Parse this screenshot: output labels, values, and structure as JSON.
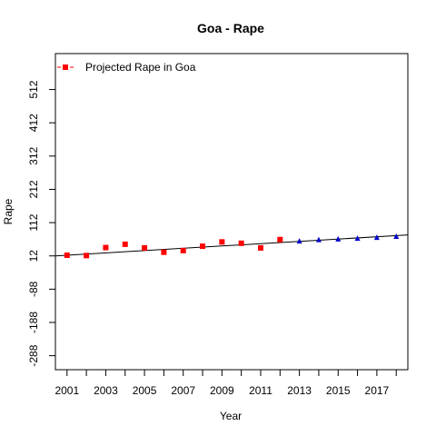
{
  "chart_data": {
    "type": "scatter",
    "title": "Goa  -  Rape",
    "xlabel": "Year",
    "ylabel": "Rape",
    "xlim": [
      2000.4,
      2018.6
    ],
    "ylim": [
      -330,
      620
    ],
    "x_ticks": [
      2001,
      2002,
      2003,
      2004,
      2005,
      2006,
      2007,
      2008,
      2009,
      2010,
      2011,
      2012,
      2013,
      2014,
      2015,
      2016,
      2017,
      2018
    ],
    "x_tick_labels": [
      "2001",
      "",
      "2003",
      "",
      "2005",
      "",
      "2007",
      "",
      "2009",
      "",
      "2011",
      "",
      "2013",
      "",
      "2015",
      "",
      "2017",
      ""
    ],
    "y_ticks": [
      -288,
      -188,
      -88,
      12,
      112,
      212,
      312,
      412,
      512
    ],
    "y_tick_labels": [
      "-288",
      "-188",
      "-88",
      "12",
      "112",
      "212",
      "312",
      "412",
      "512"
    ],
    "grid": false,
    "legend_position": "top-left",
    "legend": [
      {
        "label": "Projected Rape  in  Goa",
        "color": "#ff0000",
        "marker": "square"
      }
    ],
    "series": [
      {
        "color": "#ff0000",
        "marker": "square",
        "x": [
          2001,
          2002,
          2003,
          2004,
          2005,
          2006,
          2007,
          2008,
          2009,
          2010,
          2011,
          2012
        ],
        "y": [
          14,
          13,
          37,
          47,
          36,
          23,
          28,
          41,
          54,
          50,
          36,
          61
        ]
      },
      {
        "color": "#0000cc",
        "marker": "triangle",
        "x": [
          2013,
          2014,
          2015,
          2016,
          2017,
          2018
        ],
        "y": [
          56,
          60,
          62,
          64,
          67,
          70
        ]
      }
    ],
    "trend_line": {
      "x": [
        2000.4,
        2018.6
      ],
      "y": [
        12,
        75
      ],
      "color": "#000000"
    }
  }
}
